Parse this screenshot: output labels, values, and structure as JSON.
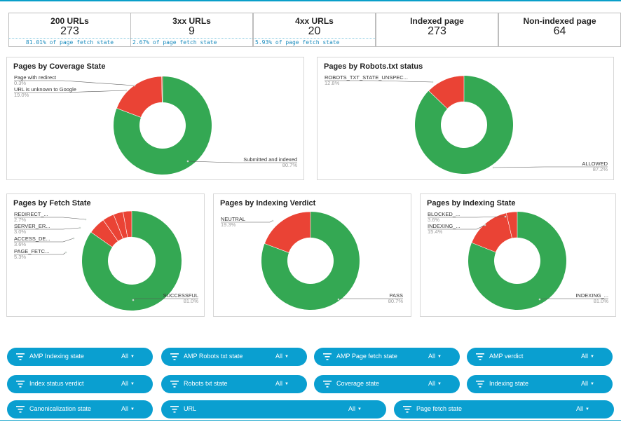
{
  "kpis": [
    {
      "title": "200 URLs",
      "value": "273",
      "sub": "81.01% of page fetch state"
    },
    {
      "title": "3xx URLs",
      "value": "9",
      "sub": "2.67% of page fetch state"
    },
    {
      "title": "4xx URLs",
      "value": "20",
      "sub": "5.93% of page fetch state"
    },
    {
      "title": "Indexed page",
      "value": "273",
      "sub": ""
    },
    {
      "title": "Non-indexed page",
      "value": "64",
      "sub": ""
    }
  ],
  "colors": {
    "green": "#34a853",
    "red": "#ea4335",
    "accent": "#0a9fd0"
  },
  "chart_data": [
    {
      "type": "pie",
      "title": "Pages by Coverage State",
      "labels": [
        "Submitted and indexed",
        "URL is unknown to Google",
        "Page with redirect"
      ],
      "values": [
        80.7,
        19.0,
        0.3
      ],
      "label_texts": [
        "Submitted and indexed",
        "URL is unknown to Google",
        "Page with redirect"
      ],
      "pct_texts": [
        "80.7%",
        "19.0%",
        "0.3%"
      ]
    },
    {
      "type": "pie",
      "title": "Pages by Robots.txt status",
      "labels": [
        "ALLOWED",
        "ROBOTS_TXT_STATE_UNSPECIFIED"
      ],
      "values": [
        87.2,
        12.8
      ],
      "label_texts": [
        "ALLOWED",
        "ROBOTS_TXT_STATE_UNSPEC..."
      ],
      "pct_texts": [
        "87.2%",
        "12.8%"
      ]
    },
    {
      "type": "pie",
      "title": "Pages by Fetch State",
      "labels": [
        "SUCCESSFUL",
        "PAGE_FETCH",
        "ACCESS_DENIED",
        "SERVER_ERROR",
        "REDIRECT"
      ],
      "values": [
        81.0,
        5.3,
        3.6,
        3.0,
        2.7
      ],
      "label_texts": [
        "SUCCESSFUL",
        "PAGE_FETC...",
        "ACCESS_DE...",
        "SERVER_ER...",
        "REDIRECT_..."
      ],
      "pct_texts": [
        "81.0%",
        "5.3%",
        "3.6%",
        "3.0%",
        "2.7%"
      ]
    },
    {
      "type": "pie",
      "title": "Pages by Indexing Verdict",
      "labels": [
        "PASS",
        "NEUTRAL"
      ],
      "values": [
        80.7,
        19.3
      ],
      "label_texts": [
        "PASS",
        "NEUTRAL"
      ],
      "pct_texts": [
        "80.7%",
        "19.3%"
      ]
    },
    {
      "type": "pie",
      "title": "Pages by Indexing State",
      "labels": [
        "INDEXING_ALLOWED",
        "INDEXING",
        "BLOCKED"
      ],
      "values": [
        81.0,
        15.4,
        3.6
      ],
      "label_texts": [
        "INDEXING_...",
        "INDEXING_...",
        "BLOCKED_..."
      ],
      "pct_texts": [
        "81.0%",
        "15.4%",
        "3.6%"
      ]
    }
  ],
  "filters": [
    {
      "label": "AMP Indexing state",
      "value": "All"
    },
    {
      "label": "AMP Robots txt state",
      "value": "All"
    },
    {
      "label": "AMP Page fetch state",
      "value": "All"
    },
    {
      "label": "AMP verdict",
      "value": "All"
    },
    {
      "label": "Index status verdict",
      "value": "All"
    },
    {
      "label": "Robots txt state",
      "value": "All"
    },
    {
      "label": "Coverage state",
      "value": "All"
    },
    {
      "label": "Indexing state",
      "value": "All"
    },
    {
      "label": "Canonicalization state",
      "value": "All"
    },
    {
      "label": "URL",
      "value": "All"
    },
    {
      "label": "Page fetch state",
      "value": "All"
    }
  ]
}
